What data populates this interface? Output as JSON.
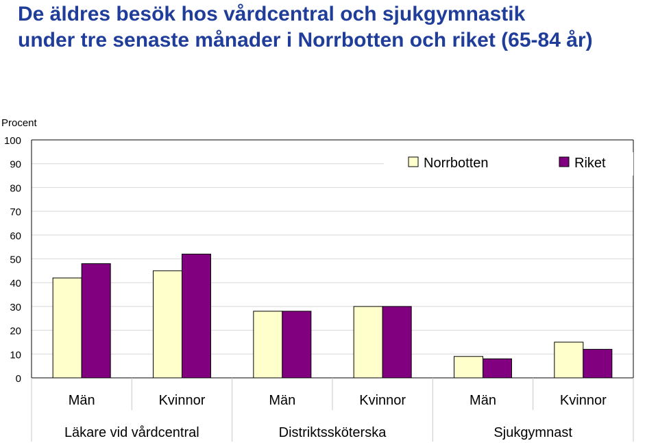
{
  "title_lines": [
    "De äldres besök hos vårdcentral och sjukgymnastik",
    "under tre senaste månader i Norrbotten och riket (65-84 år)"
  ],
  "chart_data": {
    "type": "bar",
    "title": "De äldres besök hos vårdcentral och sjukgymnastik under tre senaste månader i Norrbotten och riket (65-84 år)",
    "ylabel": "Procent",
    "xlabel": "",
    "ylim": [
      0,
      100
    ],
    "yticks": [
      0,
      10,
      20,
      30,
      40,
      50,
      60,
      70,
      80,
      90,
      100
    ],
    "grid": true,
    "legend_position": "top-right",
    "categories": [
      "Män",
      "Kvinnor",
      "Män",
      "Kvinnor",
      "Män",
      "Kvinnor"
    ],
    "groups": [
      {
        "label": "Läkare vid vårdcentral",
        "categories": [
          "Män",
          "Kvinnor"
        ]
      },
      {
        "label": "Distriktssköterska",
        "categories": [
          "Män",
          "Kvinnor"
        ]
      },
      {
        "label": "Sjukgymnast",
        "categories": [
          "Män",
          "Kvinnor"
        ]
      }
    ],
    "series": [
      {
        "name": "Norrbotten",
        "color": "#ffffcc",
        "values": [
          42,
          45,
          28,
          30,
          9,
          15
        ]
      },
      {
        "name": "Riket",
        "color": "#800080",
        "values": [
          48,
          52,
          28,
          30,
          8,
          12
        ]
      }
    ]
  }
}
